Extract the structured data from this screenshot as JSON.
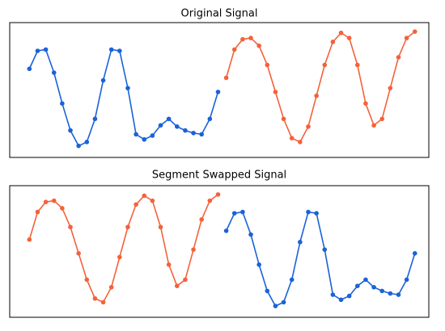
{
  "chart_data": [
    {
      "type": "line",
      "title": "Original Signal",
      "x": [
        0,
        1,
        2,
        3,
        4,
        5,
        6,
        7,
        8,
        9,
        10,
        11,
        12,
        13,
        14,
        15,
        16,
        17,
        18,
        19,
        20,
        21,
        22,
        23,
        24,
        25,
        26,
        27,
        28,
        29,
        30,
        31,
        32,
        33,
        34,
        35,
        36,
        37,
        38,
        39,
        40,
        41,
        42,
        43,
        44,
        45,
        46,
        47
      ],
      "xlim": [
        -2.4,
        48.7
      ],
      "ylim": [
        -0.3,
        10.2
      ],
      "series": [
        {
          "color": "#1a62d9",
          "values": [
            6.6,
            8.0,
            8.1,
            6.3,
            3.9,
            1.8,
            0.6,
            0.9,
            2.7,
            5.7,
            8.1,
            8.0,
            5.1,
            1.5,
            1.1,
            1.4,
            2.2,
            2.7,
            2.1,
            1.8,
            1.6,
            1.5,
            2.7,
            4.8,
            null,
            null,
            null,
            null,
            null,
            null,
            null,
            null,
            null,
            null,
            null,
            null,
            null,
            null,
            null,
            null,
            null,
            null,
            null,
            null,
            null,
            null,
            null,
            null
          ]
        },
        {
          "color": "#f4623a",
          "values": [
            null,
            null,
            null,
            null,
            null,
            null,
            null,
            null,
            null,
            null,
            null,
            null,
            null,
            null,
            null,
            null,
            null,
            null,
            null,
            null,
            null,
            null,
            null,
            null,
            5.9,
            8.1,
            8.9,
            9.0,
            8.4,
            6.9,
            4.8,
            2.7,
            1.2,
            0.9,
            2.1,
            4.5,
            6.9,
            8.7,
            9.4,
            9.0,
            6.9,
            3.9,
            2.2,
            2.7,
            5.1,
            7.5,
            9.0,
            9.5
          ]
        }
      ]
    },
    {
      "type": "line",
      "title": "Segment Swapped Signal",
      "x": [
        0,
        1,
        2,
        3,
        4,
        5,
        6,
        7,
        8,
        9,
        10,
        11,
        12,
        13,
        14,
        15,
        16,
        17,
        18,
        19,
        20,
        21,
        22,
        23,
        24,
        25,
        26,
        27,
        28,
        29,
        30,
        31,
        32,
        33,
        34,
        35,
        36,
        37,
        38,
        39,
        40,
        41,
        42,
        43,
        44,
        45,
        46,
        47
      ],
      "xlim": [
        -2.4,
        48.7
      ],
      "ylim": [
        -0.3,
        10.2
      ],
      "series": [
        {
          "color": "#f4623a",
          "values": [
            5.9,
            8.1,
            8.9,
            9.0,
            8.4,
            6.9,
            4.8,
            2.7,
            1.2,
            0.9,
            2.1,
            4.5,
            6.9,
            8.7,
            9.4,
            9.0,
            6.9,
            3.9,
            2.2,
            2.7,
            5.1,
            7.5,
            9.0,
            9.5,
            null,
            null,
            null,
            null,
            null,
            null,
            null,
            null,
            null,
            null,
            null,
            null,
            null,
            null,
            null,
            null,
            null,
            null,
            null,
            null,
            null,
            null,
            null,
            null
          ]
        },
        {
          "color": "#1a62d9",
          "values": [
            null,
            null,
            null,
            null,
            null,
            null,
            null,
            null,
            null,
            null,
            null,
            null,
            null,
            null,
            null,
            null,
            null,
            null,
            null,
            null,
            null,
            null,
            null,
            null,
            6.6,
            8.0,
            8.1,
            6.3,
            3.9,
            1.8,
            0.6,
            0.9,
            2.7,
            5.7,
            8.1,
            8.0,
            5.1,
            1.5,
            1.1,
            1.4,
            2.2,
            2.7,
            2.1,
            1.8,
            1.6,
            1.5,
            2.7,
            4.8
          ]
        }
      ]
    }
  ]
}
